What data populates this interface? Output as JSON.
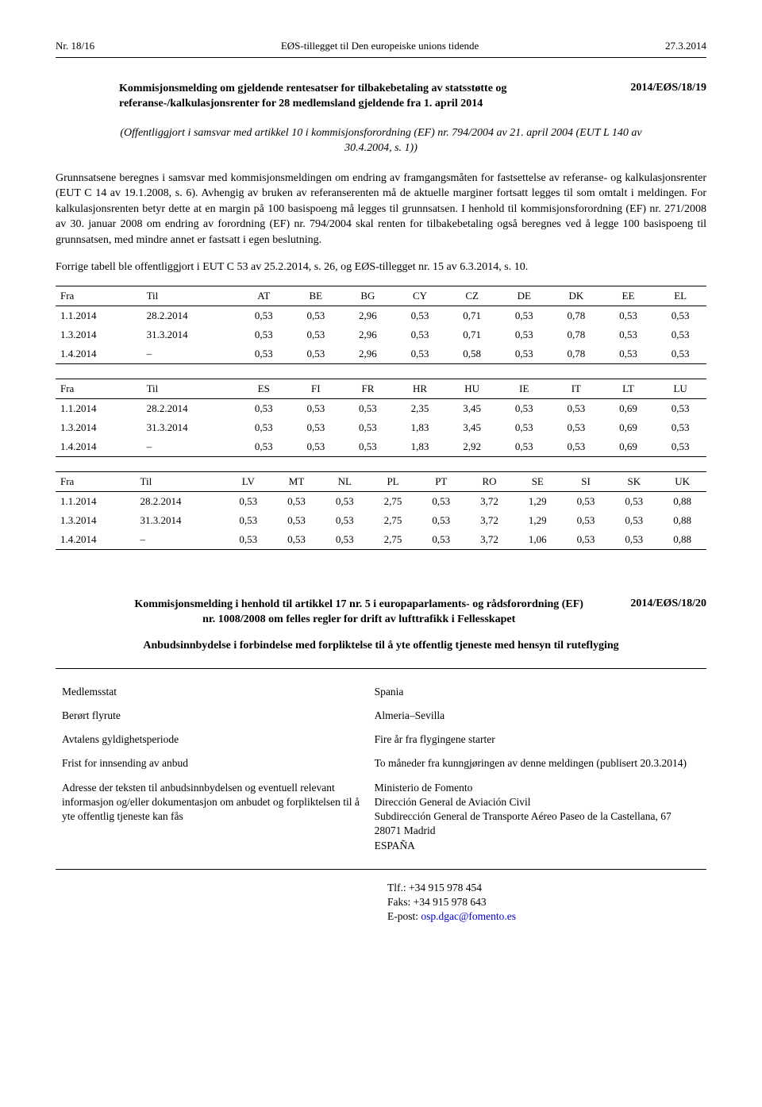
{
  "header": {
    "left": "Nr. 18/16",
    "center": "EØS-tillegget til Den europeiske unions tidende",
    "right": "27.3.2014"
  },
  "notice": {
    "title": "Kommisjonsmelding om gjeldende rentesatser for tilbakebetaling av statsstøtte og referanse-/kalkulasjonsrenter for 28 medlemsland gjeldende fra 1. april 2014",
    "code": "2014/EØS/18/19",
    "italic": "(Offentliggjort i samsvar med artikkel 10 i kommisjonsforordning (EF) nr. 794/2004 av 21. april 2004 (EUT L 140 av 30.4.2004, s. 1))",
    "para1": "Grunnsatsene beregnes i samsvar med kommisjonsmeldingen om endring av framgangsmåten for fastsettelse av referanse- og kalkulasjonsrenter (EUT C 14 av 19.1.2008, s. 6). Avhengig av bruken av referanserenten må de aktuelle marginer fortsatt legges til som omtalt i meldingen. For kalkulasjonsrenten betyr dette at en margin på 100 basispoeng må legges til grunnsatsen. I henhold til kommisjonsforordning (EF) nr. 271/2008 av 30. januar 2008 om endring av forordning (EF) nr. 794/2004 skal renten for tilbakebetaling også beregnes ved å legge 100 basispoeng til grunnsatsen, med mindre annet er fastsatt i egen beslutning.",
    "para2": "Forrige tabell ble offentliggjort i EUT C 53 av 25.2.2014, s. 26, og EØS-tillegget nr. 15 av 6.3.2014, s. 10."
  },
  "table1": {
    "head": [
      "Fra",
      "Til",
      "AT",
      "BE",
      "BG",
      "CY",
      "CZ",
      "DE",
      "DK",
      "EE",
      "EL"
    ],
    "rows": [
      [
        "1.1.2014",
        "28.2.2014",
        "0,53",
        "0,53",
        "2,96",
        "0,53",
        "0,71",
        "0,53",
        "0,78",
        "0,53",
        "0,53"
      ],
      [
        "1.3.2014",
        "31.3.2014",
        "0,53",
        "0,53",
        "2,96",
        "0,53",
        "0,71",
        "0,53",
        "0,78",
        "0,53",
        "0,53"
      ],
      [
        "1.4.2014",
        "–",
        "0,53",
        "0,53",
        "2,96",
        "0,53",
        "0,58",
        "0,53",
        "0,78",
        "0,53",
        "0,53"
      ]
    ]
  },
  "table2": {
    "head": [
      "Fra",
      "Til",
      "ES",
      "FI",
      "FR",
      "HR",
      "HU",
      "IE",
      "IT",
      "LT",
      "LU"
    ],
    "rows": [
      [
        "1.1.2014",
        "28.2.2014",
        "0,53",
        "0,53",
        "0,53",
        "2,35",
        "3,45",
        "0,53",
        "0,53",
        "0,69",
        "0,53"
      ],
      [
        "1.3.2014",
        "31.3.2014",
        "0,53",
        "0,53",
        "0,53",
        "1,83",
        "3,45",
        "0,53",
        "0,53",
        "0,69",
        "0,53"
      ],
      [
        "1.4.2014",
        "–",
        "0,53",
        "0,53",
        "0,53",
        "1,83",
        "2,92",
        "0,53",
        "0,53",
        "0,69",
        "0,53"
      ]
    ]
  },
  "table3": {
    "head": [
      "Fra",
      "Til",
      "LV",
      "MT",
      "NL",
      "PL",
      "PT",
      "RO",
      "SE",
      "SI",
      "SK",
      "UK"
    ],
    "rows": [
      [
        "1.1.2014",
        "28.2.2014",
        "0,53",
        "0,53",
        "0,53",
        "2,75",
        "0,53",
        "3,72",
        "1,29",
        "0,53",
        "0,53",
        "0,88"
      ],
      [
        "1.3.2014",
        "31.3.2014",
        "0,53",
        "0,53",
        "0,53",
        "2,75",
        "0,53",
        "3,72",
        "1,29",
        "0,53",
        "0,53",
        "0,88"
      ],
      [
        "1.4.2014",
        "–",
        "0,53",
        "0,53",
        "0,53",
        "2,75",
        "0,53",
        "3,72",
        "1,06",
        "0,53",
        "0,53",
        "0,88"
      ]
    ]
  },
  "notice2": {
    "title": "Kommisjonsmelding i henhold til artikkel 17 nr. 5 i europaparlaments- og rådsforordning (EF) nr. 1008/2008 om felles regler for drift av lufttrafikk i Fellesskapet",
    "code": "2014/EØS/18/20",
    "subtitle": "Anbudsinnbydelse i forbindelse med forpliktelse til å yte offentlig tjeneste med hensyn til ruteflyging"
  },
  "info_rows": [
    [
      "Medlemsstat",
      "Spania"
    ],
    [
      "Berørt flyrute",
      "Almeria–Sevilla"
    ],
    [
      "Avtalens gyldighetsperiode",
      "Fire år fra flygingene starter"
    ],
    [
      "Frist for innsending av anbud",
      "To måneder fra kunngjøringen av denne meldingen (publisert 20.3.2014)"
    ],
    [
      "Adresse der teksten til anbudsinnbydelsen og eventuell relevant informasjon og/eller dokumentasjon om anbudet og forpliktelsen til å yte offentlig tjeneste kan fås",
      "Ministerio de Fomento\nDirección General de Aviación Civil\nSubdirección General de Transporte Aéreo Paseo de la Castellana, 67\n28071 Madrid\nESPAÑA"
    ]
  ],
  "contact": {
    "tel": "Tlf.: +34 915 978 454",
    "fax": "Faks: +34 915 978 643",
    "email_label": "E-post: ",
    "email": "osp.dgac@fomento.es"
  }
}
